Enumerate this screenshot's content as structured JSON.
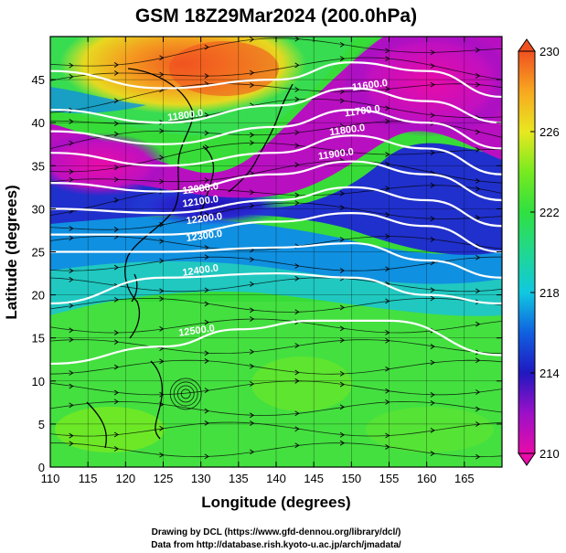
{
  "title": "GSM 18Z29Mar2024 (200.0hPa)",
  "credits": [
    "Drawing by DCL (https://www.gfd-dennou.org/library/dcl/)",
    "Data from http://database.rish.kyoto-u.ac.jp/arch/jmadata/"
  ],
  "chart_data": {
    "type": "heatmap",
    "title": "GSM 18Z29Mar2024 (200.0hPa)",
    "xlabel": "Longitude (degrees)",
    "ylabel": "Latitude  (degrees)",
    "xlim": [
      110,
      170
    ],
    "ylim": [
      0,
      50
    ],
    "xticks": [
      110,
      115,
      120,
      125,
      130,
      135,
      140,
      145,
      150,
      155,
      160,
      165
    ],
    "yticks": [
      0,
      5,
      10,
      15,
      20,
      25,
      30,
      35,
      40,
      45
    ],
    "grid": true,
    "colorbar": {
      "min": 210,
      "max": 230,
      "ticks": [
        230,
        226,
        222,
        218,
        214,
        210
      ],
      "colors": [
        "#e80ca8",
        "#9c10c8",
        "#2018c0",
        "#1060e0",
        "#10c8e0",
        "#20d890",
        "#30e040",
        "#78ea20",
        "#e8e820",
        "#f8a820",
        "#f05020"
      ]
    },
    "field_samples": [
      {
        "lon": 130,
        "lat": 47,
        "value": 227
      },
      {
        "lon": 118,
        "lat": 46,
        "value": 224
      },
      {
        "lon": 112,
        "lat": 38,
        "value": 211
      },
      {
        "lon": 130,
        "lat": 32,
        "value": 213
      },
      {
        "lon": 158,
        "lat": 45,
        "value": 211
      },
      {
        "lon": 120,
        "lat": 25,
        "value": 218
      },
      {
        "lon": 165,
        "lat": 30,
        "value": 214
      },
      {
        "lon": 140,
        "lat": 10,
        "value": 222
      },
      {
        "lon": 165,
        "lat": 15,
        "value": 222
      }
    ],
    "contours": [
      {
        "label": "11600.0",
        "lat_at": [
          [
            110,
            46
          ],
          [
            125,
            44
          ],
          [
            140,
            45
          ],
          [
            150,
            47
          ],
          [
            160,
            46
          ],
          [
            170,
            43
          ]
        ]
      },
      {
        "label": "11700.0",
        "lat_at": [
          [
            110,
            41.5
          ],
          [
            125,
            40
          ],
          [
            140,
            42
          ],
          [
            150,
            44
          ],
          [
            160,
            42.5
          ],
          [
            170,
            40
          ]
        ]
      },
      {
        "label": "11800.0",
        "lat_at": [
          [
            110,
            39
          ],
          [
            125,
            37.5
          ],
          [
            140,
            39.5
          ],
          [
            150,
            41.5
          ],
          [
            160,
            40
          ],
          [
            170,
            37
          ]
        ]
      },
      {
        "label": "11900.0",
        "lat_at": [
          [
            110,
            36.5
          ],
          [
            125,
            35
          ],
          [
            140,
            36.5
          ],
          [
            150,
            38.5
          ],
          [
            160,
            37
          ],
          [
            170,
            34
          ]
        ]
      },
      {
        "label": "12000.0",
        "lat_at": [
          [
            110,
            33
          ],
          [
            125,
            32
          ],
          [
            140,
            34
          ],
          [
            150,
            35.5
          ],
          [
            160,
            34
          ],
          [
            170,
            31
          ]
        ]
      },
      {
        "label": "12100.0",
        "lat_at": [
          [
            110,
            30
          ],
          [
            125,
            29.5
          ],
          [
            140,
            31
          ],
          [
            150,
            32.5
          ],
          [
            160,
            31
          ],
          [
            170,
            28
          ]
        ]
      },
      {
        "label": "12200.0",
        "lat_at": [
          [
            110,
            27
          ],
          [
            125,
            27
          ],
          [
            140,
            28.5
          ],
          [
            150,
            29.5
          ],
          [
            160,
            28
          ],
          [
            170,
            25
          ]
        ]
      },
      {
        "label": "12300.0",
        "lat_at": [
          [
            110,
            25
          ],
          [
            125,
            25
          ],
          [
            140,
            25.5
          ],
          [
            150,
            26
          ],
          [
            160,
            24
          ],
          [
            170,
            22
          ]
        ]
      },
      {
        "label": "12400.0",
        "lat_at": [
          [
            110,
            19
          ],
          [
            125,
            22
          ],
          [
            140,
            22.5
          ],
          [
            150,
            22
          ],
          [
            160,
            20
          ],
          [
            170,
            19
          ]
        ]
      },
      {
        "label": "12500.0",
        "lat_at": [
          [
            110,
            12
          ],
          [
            125,
            14
          ],
          [
            135,
            16
          ],
          [
            145,
            17
          ],
          [
            155,
            17
          ],
          [
            170,
            13
          ]
        ]
      }
    ],
    "contour_labels": [
      {
        "text": "11600.0",
        "lon": 152.5,
        "lat": 44
      },
      {
        "text": "11700.0",
        "lon": 151.5,
        "lat": 41
      },
      {
        "text": "11800.0",
        "lon": 149.5,
        "lat": 38.8
      },
      {
        "text": "11900.0",
        "lon": 148,
        "lat": 36
      },
      {
        "text": "11800.0",
        "lon": 128,
        "lat": 40.5
      },
      {
        "text": "12000.0",
        "lon": 130,
        "lat": 32
      },
      {
        "text": "12100.0",
        "lon": 130,
        "lat": 30.5
      },
      {
        "text": "12200.0",
        "lon": 130.5,
        "lat": 28.5
      },
      {
        "text": "12300.0",
        "lon": 130.5,
        "lat": 26.5
      },
      {
        "text": "12400.0",
        "lon": 130,
        "lat": 22.5
      },
      {
        "text": "12500.0",
        "lon": 129.5,
        "lat": 15.5
      }
    ]
  }
}
